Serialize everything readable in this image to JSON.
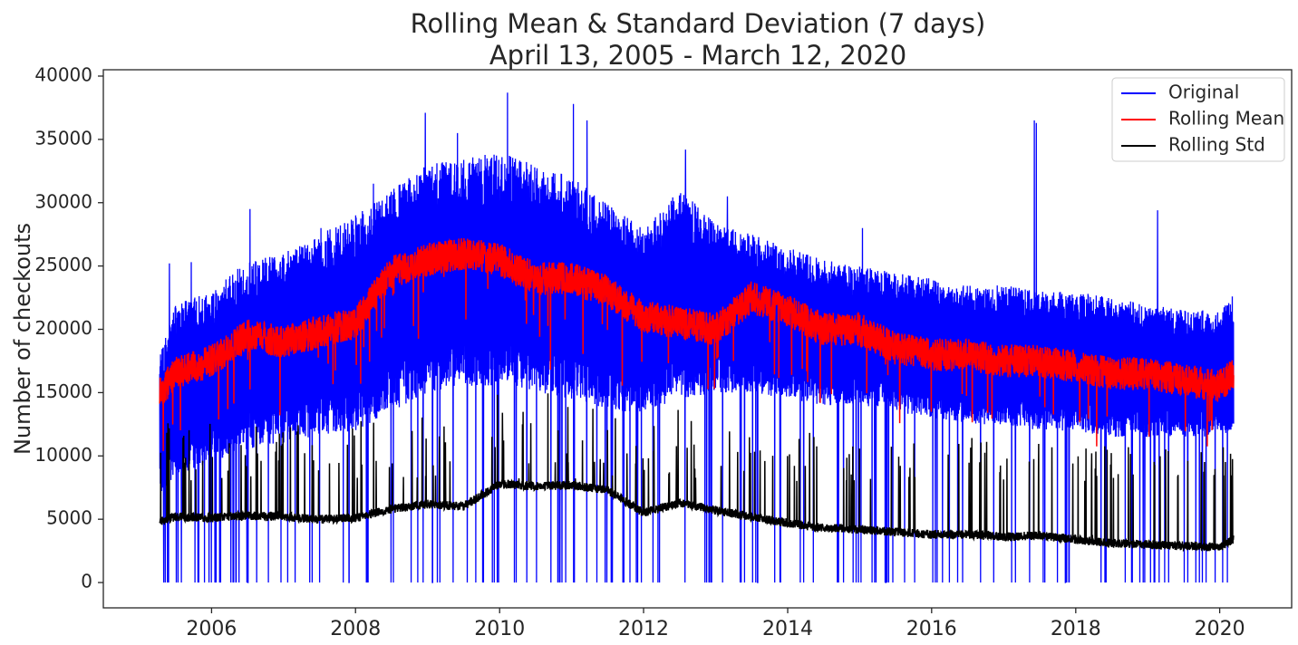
{
  "chart_data": {
    "type": "line",
    "title": "Rolling Mean & Standard Deviation (7 days)",
    "subtitle": "April 13, 2005 - March 12, 2020",
    "xlabel": "",
    "ylabel": "Number of checkouts",
    "xlim": [
      "2004-07-01",
      "2020-12-31"
    ],
    "ylim": [
      -2000,
      40500
    ],
    "x_ticks": [
      "2006",
      "2008",
      "2010",
      "2012",
      "2014",
      "2016",
      "2018",
      "2020"
    ],
    "y_ticks": [
      0,
      5000,
      10000,
      15000,
      20000,
      25000,
      30000,
      35000,
      40000
    ],
    "grid": false,
    "legend_position": "top-right",
    "x_start": "2005-04-13",
    "x_end": "2020-03-12",
    "series": [
      {
        "name": "Original",
        "color": "#0000ff",
        "description": "daily checkouts",
        "x": [
          "2005-04-13",
          "2005-07-01",
          "2006-01-01",
          "2006-07-01",
          "2007-01-01",
          "2007-07-01",
          "2008-01-01",
          "2008-07-01",
          "2009-01-01",
          "2009-07-01",
          "2010-01-01",
          "2010-07-01",
          "2011-01-01",
          "2011-07-01",
          "2012-01-01",
          "2012-07-01",
          "2013-01-01",
          "2013-07-01",
          "2014-01-01",
          "2014-07-01",
          "2015-01-01",
          "2015-07-01",
          "2016-01-01",
          "2016-07-01",
          "2017-01-01",
          "2017-07-01",
          "2018-01-01",
          "2018-07-01",
          "2019-01-01",
          "2019-07-01",
          "2020-01-01",
          "2020-03-12"
        ],
        "low": [
          7000,
          8500,
          9500,
          10500,
          11000,
          11500,
          12000,
          13500,
          15000,
          15500,
          15500,
          15000,
          14500,
          13500,
          13500,
          14500,
          15000,
          15000,
          14500,
          14000,
          14000,
          13500,
          13000,
          12500,
          12500,
          12000,
          12000,
          11500,
          11500,
          11500,
          11500,
          12000
        ],
        "high": [
          18000,
          22000,
          23000,
          25500,
          26000,
          27500,
          29000,
          31000,
          33000,
          33500,
          34000,
          33000,
          32000,
          30000,
          28000,
          31000,
          28500,
          27500,
          26500,
          25500,
          25000,
          24500,
          24000,
          23500,
          23500,
          23000,
          23000,
          22500,
          22000,
          21500,
          21500,
          22500
        ],
        "peaks": [
          {
            "x": "2005-06-01",
            "y": 25200
          },
          {
            "x": "2005-09-20",
            "y": 25300
          },
          {
            "x": "2006-07-15",
            "y": 29500
          },
          {
            "x": "2007-07-10",
            "y": 28000
          },
          {
            "x": "2008-04-01",
            "y": 31500
          },
          {
            "x": "2008-12-20",
            "y": 37100
          },
          {
            "x": "2009-06-01",
            "y": 35500
          },
          {
            "x": "2010-02-10",
            "y": 38700
          },
          {
            "x": "2010-06-10",
            "y": 33000
          },
          {
            "x": "2011-01-10",
            "y": 37800
          },
          {
            "x": "2011-03-20",
            "y": 36500
          },
          {
            "x": "2012-08-01",
            "y": 34200
          },
          {
            "x": "2013-03-01",
            "y": 30500
          },
          {
            "x": "2015-01-15",
            "y": 28000
          },
          {
            "x": "2017-06-05",
            "y": 36500
          },
          {
            "x": "2017-06-15",
            "y": 36300
          },
          {
            "x": "2019-02-20",
            "y": 29400
          },
          {
            "x": "2020-03-05",
            "y": 22600
          }
        ],
        "dips_to_zero_approx_per_year": 10
      },
      {
        "name": "Rolling Mean",
        "color": "#ff0000",
        "x": [
          "2005-04-13",
          "2005-07-01",
          "2006-01-01",
          "2006-07-01",
          "2007-01-01",
          "2007-07-01",
          "2008-01-01",
          "2008-07-01",
          "2009-01-01",
          "2009-07-01",
          "2010-01-01",
          "2010-07-01",
          "2011-01-01",
          "2011-07-01",
          "2012-01-01",
          "2012-07-01",
          "2013-01-01",
          "2013-07-01",
          "2014-01-01",
          "2014-07-01",
          "2015-01-01",
          "2015-07-01",
          "2016-01-01",
          "2016-07-01",
          "2017-01-01",
          "2017-07-01",
          "2018-01-01",
          "2018-07-01",
          "2019-01-01",
          "2019-07-01",
          "2020-01-01",
          "2020-03-12"
        ],
        "y": [
          15000,
          16500,
          17500,
          19500,
          19000,
          19800,
          20500,
          24500,
          25500,
          26000,
          25500,
          24000,
          24000,
          23000,
          21000,
          20500,
          20000,
          22500,
          21500,
          20000,
          20000,
          18500,
          18000,
          18000,
          17500,
          17500,
          17000,
          16500,
          16500,
          16000,
          15500,
          16500
        ]
      },
      {
        "name": "Rolling Std",
        "color": "#000000",
        "x": [
          "2005-04-13",
          "2005-07-01",
          "2006-01-01",
          "2006-07-01",
          "2007-01-01",
          "2007-07-01",
          "2008-01-01",
          "2008-07-01",
          "2009-01-01",
          "2009-07-01",
          "2010-01-01",
          "2010-07-01",
          "2011-01-01",
          "2011-07-01",
          "2012-01-01",
          "2012-07-01",
          "2013-01-01",
          "2013-07-01",
          "2014-01-01",
          "2014-07-01",
          "2015-01-01",
          "2015-07-01",
          "2016-01-01",
          "2016-07-01",
          "2017-01-01",
          "2017-07-01",
          "2018-01-01",
          "2018-07-01",
          "2019-01-01",
          "2019-07-01",
          "2020-01-01",
          "2020-03-12"
        ],
        "y": [
          4800,
          5200,
          5100,
          5300,
          5200,
          5000,
          5100,
          5800,
          6200,
          6000,
          7800,
          7600,
          7700,
          7300,
          5500,
          6300,
          5700,
          5200,
          4700,
          4300,
          4200,
          4000,
          3800,
          3800,
          3600,
          3700,
          3400,
          3100,
          3000,
          2900,
          2800,
          3400
        ],
        "peaks_y_range": [
          8000,
          13500
        ]
      }
    ]
  }
}
